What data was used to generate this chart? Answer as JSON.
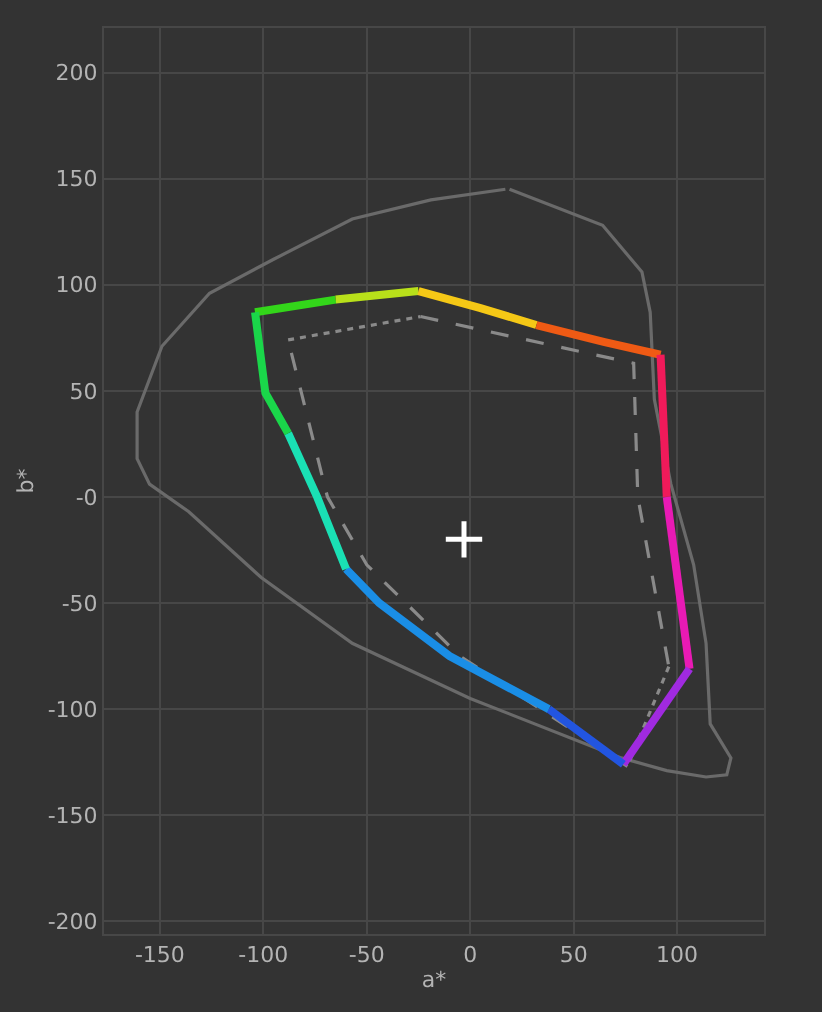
{
  "chart_data": {
    "type": "line",
    "xlabel": "a*",
    "ylabel": "b*",
    "xlim": [
      -177,
      142
    ],
    "ylim": [
      -206,
      221
    ],
    "xticks": [
      -150,
      -100,
      -50,
      0,
      50,
      100
    ],
    "yticks": [
      -200,
      -150,
      -100,
      -50,
      {
        "value": 0,
        "label": "-0"
      },
      50,
      100,
      150,
      200
    ],
    "grid": true,
    "line_style": "solid",
    "marker": "none",
    "series": [
      {
        "color": "#6a6a6a",
        "x": [
          19,
          64,
          83,
          87,
          89,
          97,
          108,
          114,
          116,
          126,
          124,
          114,
          95,
          73,
          0,
          -57,
          -101,
          -136,
          -155,
          -161,
          -161,
          -149,
          -126,
          -95,
          -57,
          -19,
          17
        ],
        "values": [
          145,
          128,
          106,
          87,
          46,
          6,
          -32,
          -69,
          -107,
          -123,
          -131,
          -132,
          -129,
          -123,
          -95,
          -69,
          -38,
          -7,
          6,
          18,
          40,
          71,
          96,
          112,
          131,
          140,
          145
        ]
      },
      {
        "color": "#8a8a8a",
        "line_style": "dotted",
        "x": [
          -88,
          -24,
          null,
          96,
          76
        ],
        "values": [
          74,
          85,
          null,
          -80,
          -127
        ]
      },
      {
        "color": "#8a8a8a",
        "line_style": "dashed",
        "x": [
          -24,
          79,
          81,
          96,
          null,
          76,
          -5,
          -50,
          -69,
          -88
        ],
        "values": [
          85,
          63,
          0,
          -80,
          null,
          -127,
          -75,
          -32,
          0,
          74
        ]
      },
      {
        "color": "#33d61a",
        "x": [
          -104,
          -65
        ],
        "values": [
          87,
          93
        ]
      },
      {
        "color": "#b8e01a",
        "x": [
          -65,
          -25
        ],
        "values": [
          93,
          97
        ]
      },
      {
        "color": "#f5c816",
        "x": [
          -25,
          5,
          32
        ],
        "values": [
          97,
          89,
          81
        ]
      },
      {
        "color": "#ef5a14",
        "x": [
          32,
          65,
          92
        ],
        "values": [
          81,
          73,
          67
        ]
      },
      {
        "color": "#f01a5a",
        "x": [
          92,
          95
        ],
        "values": [
          67,
          0
        ]
      },
      {
        "color": "#e81ab4",
        "x": [
          95,
          106
        ],
        "values": [
          0,
          -81
        ]
      },
      {
        "color": "#a02ae0",
        "x": [
          106,
          74
        ],
        "values": [
          -81,
          -126
        ]
      },
      {
        "color": "#2255e0",
        "x": [
          74,
          38
        ],
        "values": [
          -126,
          -100
        ]
      },
      {
        "color": "#1a8ee6",
        "x": [
          38,
          -10,
          -44,
          -60
        ],
        "values": [
          -100,
          -75,
          -50,
          -34
        ]
      },
      {
        "color": "#1ae0b4",
        "x": [
          -60,
          -74,
          -88
        ],
        "values": [
          -34,
          0,
          30
        ]
      },
      {
        "color": "#1ad64a",
        "x": [
          -88,
          -99,
          -104
        ],
        "values": [
          30,
          49,
          87
        ]
      },
      {
        "type": "scatter",
        "marker": "cross",
        "color": "#ffffff",
        "x": [
          -3
        ],
        "values": [
          -20
        ]
      }
    ]
  }
}
